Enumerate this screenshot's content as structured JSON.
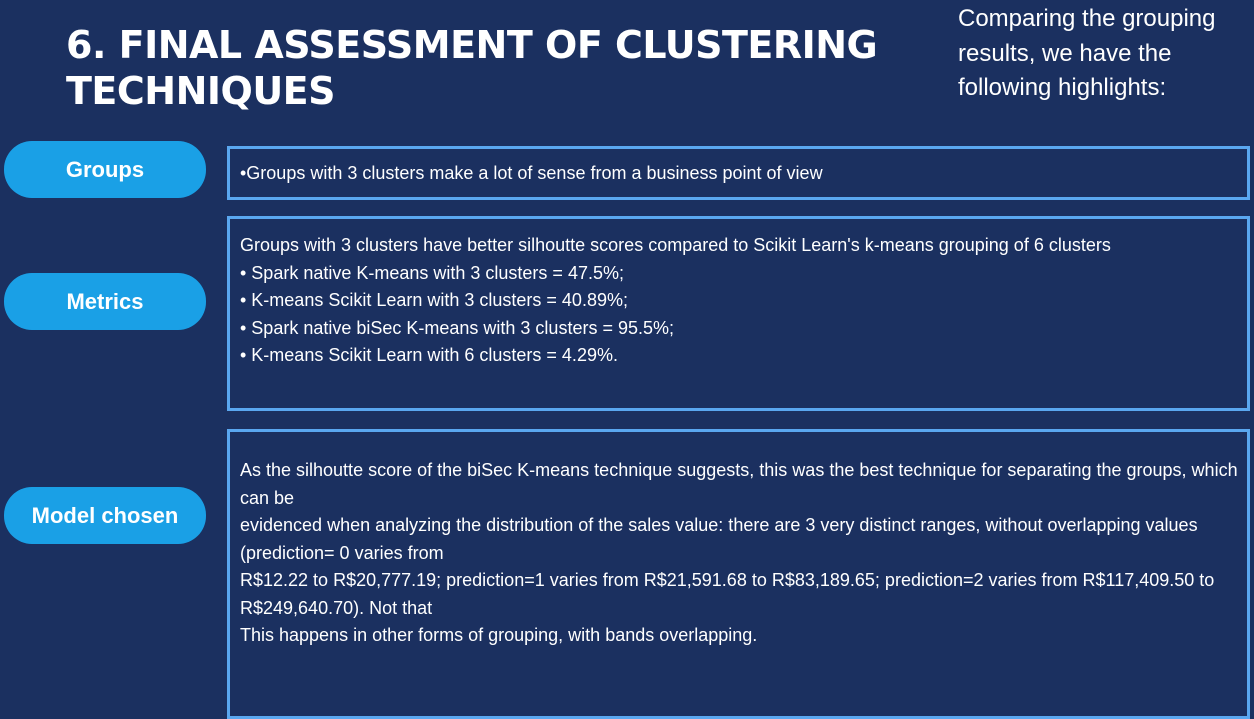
{
  "slide": {
    "title": "6. FINAL ASSESSMENT OF CLUSTERING TECHNIQUES",
    "intro": "Comparing the grouping results, we have the following highlights:"
  },
  "sections": {
    "groups": {
      "label": "Groups",
      "lines": [
        "•Groups with 3 clusters make a lot of sense from a business point of view"
      ]
    },
    "metrics": {
      "label": "Metrics",
      "lines": [
        "Groups with 3 clusters have better silhoutte scores compared to Scikit Learn's k-means grouping of 6 clusters",
        "• Spark native K-means with 3 clusters = 47.5%;",
        "• K-means Scikit Learn with 3 clusters = 40.89%;",
        "• Spark native biSec K-means with 3 clusters = 95.5%;",
        "• K-means Scikit Learn with 6 clusters = 4.29%."
      ]
    },
    "model": {
      "label": "Model chosen",
      "lines": [
        "As the silhoutte score of the biSec K-means technique suggests, this was the best technique for separating the groups, which can be",
        "evidenced when analyzing the distribution of the sales value: there are 3 very distinct ranges, without overlapping values (prediction= 0 varies from",
        "R$12.22 to R$20,777.19; prediction=1 varies from R$21,591.68 to R$83,189.65; prediction=2 varies from R$117,409.50 to R$249,640.70). Not that",
        "This happens in other forms of grouping, with bands overlapping."
      ]
    }
  },
  "colors": {
    "background": "#1b3060",
    "pill": "#1aa0e6",
    "box_border": "#5aa7f0",
    "text": "#ffffff"
  }
}
